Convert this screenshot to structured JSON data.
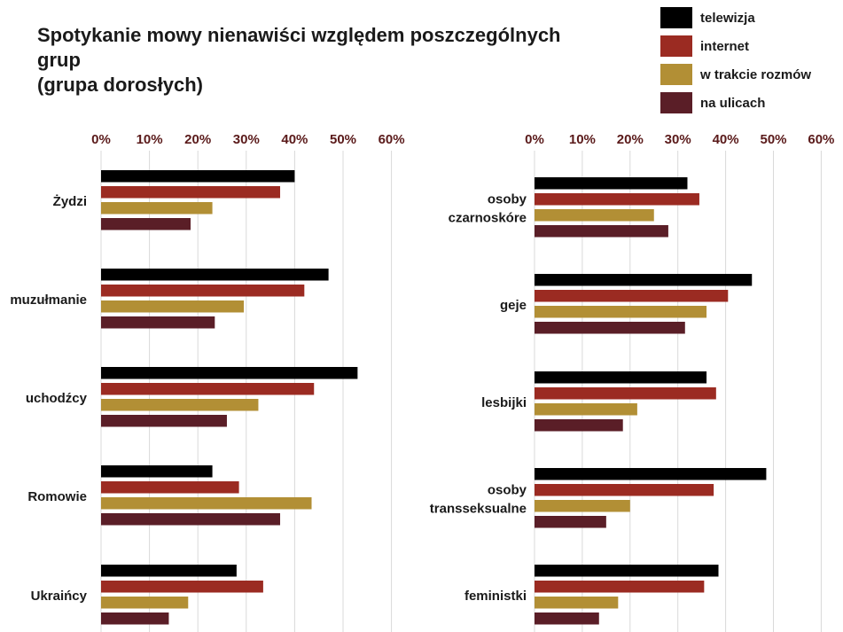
{
  "title": {
    "line1": "Spotykanie mowy nienawiści względem poszczególnych grup",
    "line2": "(grupa dorosłych)"
  },
  "legend": [
    {
      "label": "telewizja",
      "color": "#000000"
    },
    {
      "label": "internet",
      "color": "#9b2b22"
    },
    {
      "label": "w trakcie rozmów",
      "color": "#b28f35"
    },
    {
      "label": "na ulicach",
      "color": "#5a1e27"
    }
  ],
  "chart_data": [
    {
      "type": "bar",
      "orientation": "horizontal",
      "xlim": [
        0,
        60
      ],
      "ticks": [
        "0%",
        "10%",
        "20%",
        "30%",
        "40%",
        "50%",
        "60%"
      ],
      "grid": true,
      "categories": [
        [
          "Żydzi"
        ],
        [
          "muzułmanie"
        ],
        [
          "uchodźcy"
        ],
        [
          "Romowie"
        ],
        [
          "Ukraińcy"
        ]
      ],
      "series": [
        {
          "name": "telewizja",
          "values": [
            40,
            47,
            53,
            23,
            28
          ]
        },
        {
          "name": "internet",
          "values": [
            37,
            42,
            44,
            28.5,
            33.5
          ]
        },
        {
          "name": "w trakcie rozmów",
          "values": [
            23,
            29.5,
            32.5,
            43.5,
            18
          ]
        },
        {
          "name": "na ulicach",
          "values": [
            18.5,
            23.5,
            26,
            37,
            14
          ]
        }
      ]
    },
    {
      "type": "bar",
      "orientation": "horizontal",
      "xlim": [
        0,
        60
      ],
      "ticks": [
        "0%",
        "10%",
        "20%",
        "30%",
        "40%",
        "50%",
        "60%"
      ],
      "grid": true,
      "categories": [
        [
          "osoby",
          "czarnoskóre"
        ],
        [
          "geje"
        ],
        [
          "lesbijki"
        ],
        [
          "osoby",
          "transseksualne"
        ],
        [
          "feministki"
        ]
      ],
      "series": [
        {
          "name": "telewizja",
          "values": [
            32,
            45.5,
            36,
            48.5,
            38.5
          ]
        },
        {
          "name": "internet",
          "values": [
            34.5,
            40.5,
            38,
            37.5,
            35.5
          ]
        },
        {
          "name": "w trakcie rozmów",
          "values": [
            25,
            36,
            21.5,
            20,
            17.5
          ]
        },
        {
          "name": "na ulicach",
          "values": [
            28,
            31.5,
            18.5,
            15,
            13.5
          ]
        }
      ]
    }
  ]
}
